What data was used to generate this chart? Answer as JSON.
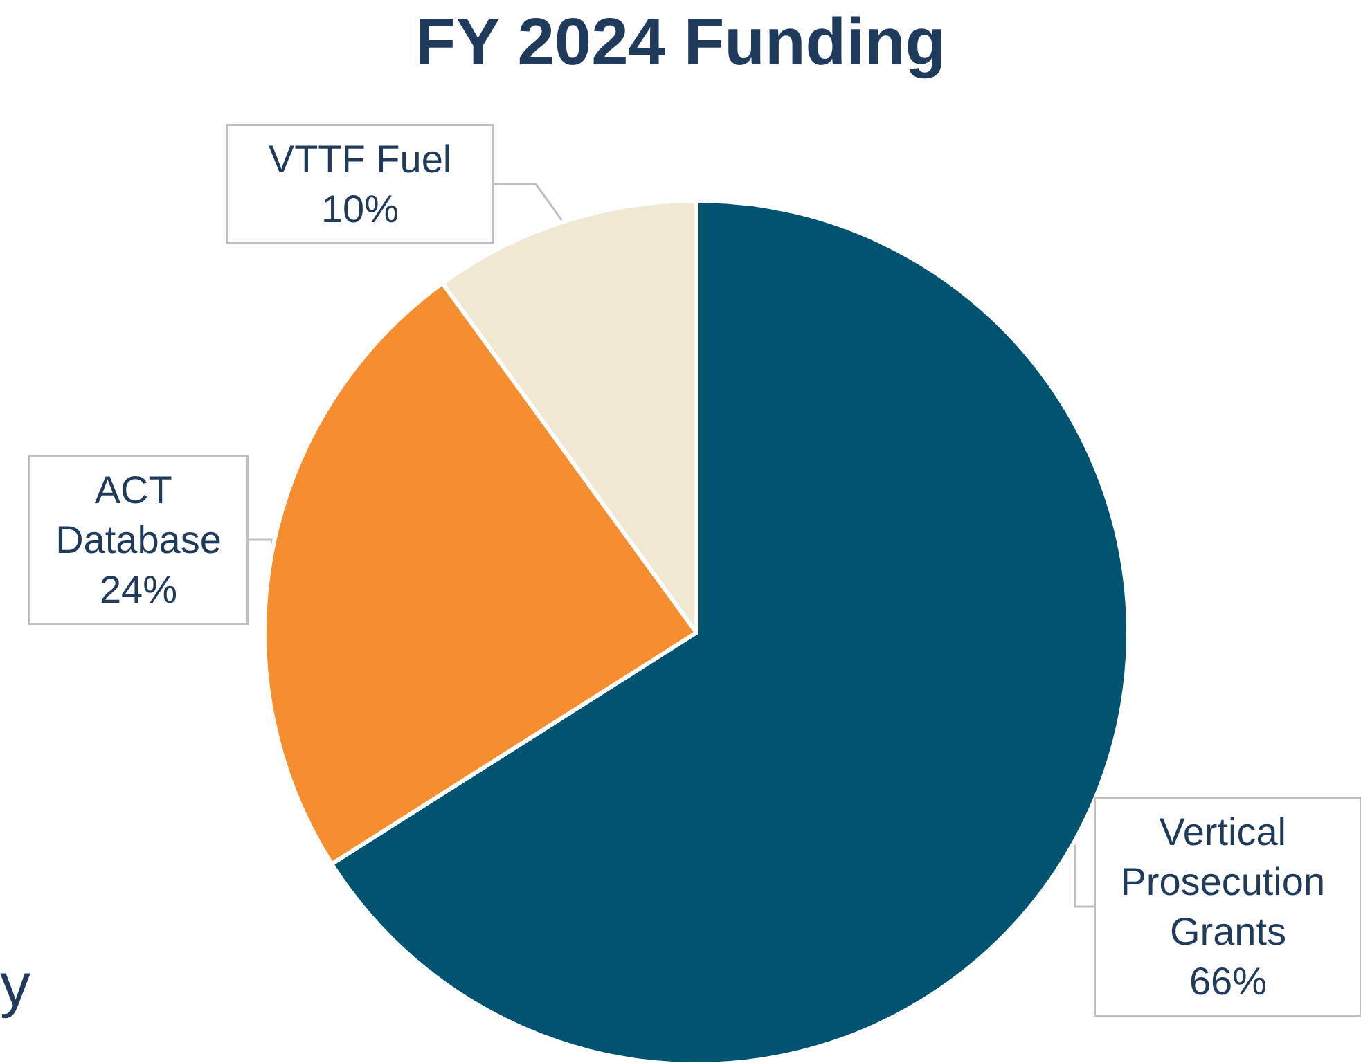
{
  "chart_data": {
    "type": "pie",
    "title": "FY 2024 Funding",
    "categories": [
      "Vertical Prosecution Grants",
      "ACT Database",
      "VTTF Fuel"
    ],
    "values": [
      66,
      24,
      10
    ],
    "colors": [
      "#00546f",
      "#f68d2e",
      "#f0e8d2"
    ],
    "value_labels": [
      "66%",
      "24%",
      "10%"
    ],
    "legend": false,
    "annotations": [
      "y"
    ]
  }
}
